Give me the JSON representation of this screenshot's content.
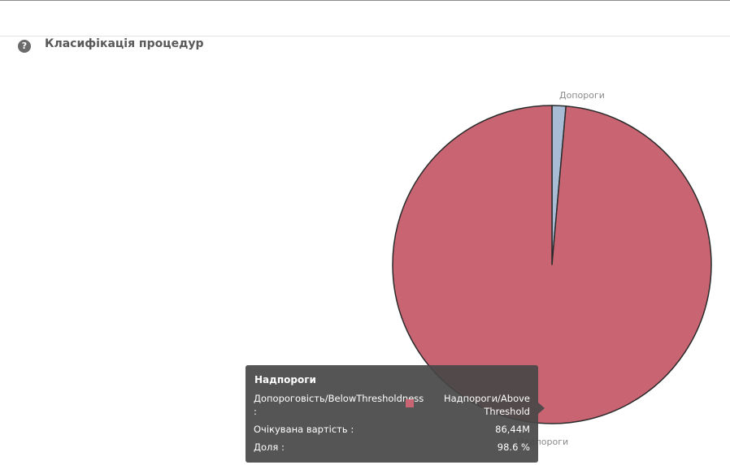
{
  "page": {
    "title": "Класифікація процедур",
    "help_icon": "question-circle-icon"
  },
  "chart_data": {
    "type": "pie",
    "title": "Класифікація процедур",
    "slices": [
      {
        "label": "Допороги",
        "share_percent": 1.4,
        "color": "#a9bcd6"
      },
      {
        "label": "Надпороги",
        "share_percent": 98.6,
        "value": "86,44M",
        "color": "#c96573"
      }
    ]
  },
  "tooltip": {
    "title": "Надпороги",
    "rows": [
      {
        "key": "Допороговість/BelowThresholdness :",
        "value": "Надпороги/Above Threshold",
        "swatch_color": "#c96573"
      },
      {
        "key": "Очікувана вартість :",
        "value": "86,44M"
      },
      {
        "key": "Доля :",
        "value": "98.6 %"
      }
    ]
  }
}
